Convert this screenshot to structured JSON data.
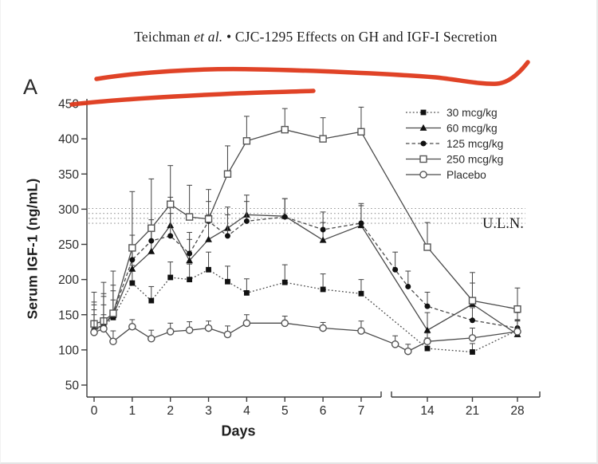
{
  "page": {
    "header": {
      "part1": "Teichman ",
      "part2": "et al.",
      "part3": " • CJC-1295 Effects on GH and IGF-I Secretion"
    },
    "panel_label": "A",
    "uln_label": "U.L.N.",
    "annotation_color": "#de391b"
  },
  "chart_data": {
    "type": "line",
    "title": "",
    "xlabel": "Days",
    "ylabel": "Serum IGF-1 (ng/mL)",
    "ylim": [
      50,
      460
    ],
    "y_ticks": [
      50,
      100,
      150,
      200,
      250,
      300,
      350,
      400,
      450
    ],
    "x_ticks_left": [
      0,
      1,
      2,
      3,
      4,
      5,
      6,
      7
    ],
    "x_ticks_right": [
      14,
      21,
      28
    ],
    "axis_break": true,
    "grid": false,
    "legend_position": "top-right",
    "uln_band_values": [
      280,
      287,
      294,
      301
    ],
    "series": [
      {
        "name": "30 mcg/kg",
        "marker": "square-filled",
        "line": "dotted",
        "x": [
          0,
          0.25,
          0.5,
          1,
          1.5,
          2,
          2.5,
          3,
          3.5,
          4,
          5,
          6,
          7,
          14,
          21,
          28
        ],
        "y": [
          127,
          134,
          146,
          195,
          170,
          203,
          200,
          214,
          197,
          181,
          196,
          186,
          180,
          102,
          97,
          128
        ],
        "err": [
          30,
          30,
          25,
          25,
          20,
          22,
          22,
          25,
          22,
          20,
          25,
          22,
          20,
          15,
          12,
          15
        ]
      },
      {
        "name": "60 mcg/kg",
        "marker": "triangle-filled",
        "line": "solid",
        "x": [
          0,
          0.25,
          0.5,
          1,
          1.5,
          2,
          2.5,
          3,
          3.5,
          4,
          5,
          6,
          7,
          14,
          21,
          28
        ],
        "y": [
          129,
          136,
          149,
          215,
          240,
          277,
          227,
          257,
          273,
          292,
          290,
          256,
          277,
          128,
          165,
          122
        ],
        "err": [
          35,
          40,
          35,
          30,
          35,
          40,
          30,
          35,
          30,
          28,
          25,
          25,
          28,
          25,
          45,
          20
        ]
      },
      {
        "name": "125 mcg/kg",
        "marker": "circle-filled",
        "line": "dashed",
        "x": [
          0,
          0.25,
          0.5,
          1,
          1.5,
          2,
          2.5,
          3,
          3.5,
          4,
          5,
          6,
          7,
          9,
          11,
          14,
          21,
          28
        ],
        "y": [
          128,
          135,
          152,
          228,
          255,
          262,
          237,
          283,
          262,
          283,
          289,
          271,
          280,
          214,
          190,
          162,
          142,
          131
        ],
        "err": [
          40,
          45,
          40,
          35,
          30,
          32,
          30,
          28,
          30,
          28,
          26,
          25,
          28,
          25,
          22,
          20,
          18,
          22
        ]
      },
      {
        "name": "250 mcg/kg",
        "marker": "square-open",
        "line": "solid",
        "x": [
          0,
          0.25,
          0.5,
          1,
          1.5,
          2,
          2.5,
          3,
          3.5,
          4,
          5,
          6,
          7,
          14,
          21,
          28
        ],
        "y": [
          137,
          141,
          152,
          245,
          273,
          307,
          289,
          286,
          350,
          397,
          413,
          400,
          410,
          246,
          170,
          158
        ],
        "err": [
          45,
          55,
          60,
          80,
          70,
          55,
          45,
          42,
          40,
          35,
          30,
          30,
          35,
          35,
          25,
          30
        ]
      },
      {
        "name": "Placebo",
        "marker": "circle-open",
        "line": "solid",
        "x": [
          0,
          0.25,
          0.5,
          1,
          1.5,
          2,
          2.5,
          3,
          3.5,
          4,
          5,
          6,
          7,
          9,
          11,
          14,
          21,
          28
        ],
        "y": [
          125,
          130,
          112,
          133,
          116,
          126,
          128,
          131,
          122,
          138,
          138,
          131,
          127,
          108,
          98,
          112,
          117,
          126
        ],
        "err": [
          25,
          20,
          15,
          10,
          12,
          12,
          12,
          10,
          12,
          12,
          10,
          8,
          14,
          12,
          10,
          12,
          14,
          15
        ]
      }
    ]
  }
}
